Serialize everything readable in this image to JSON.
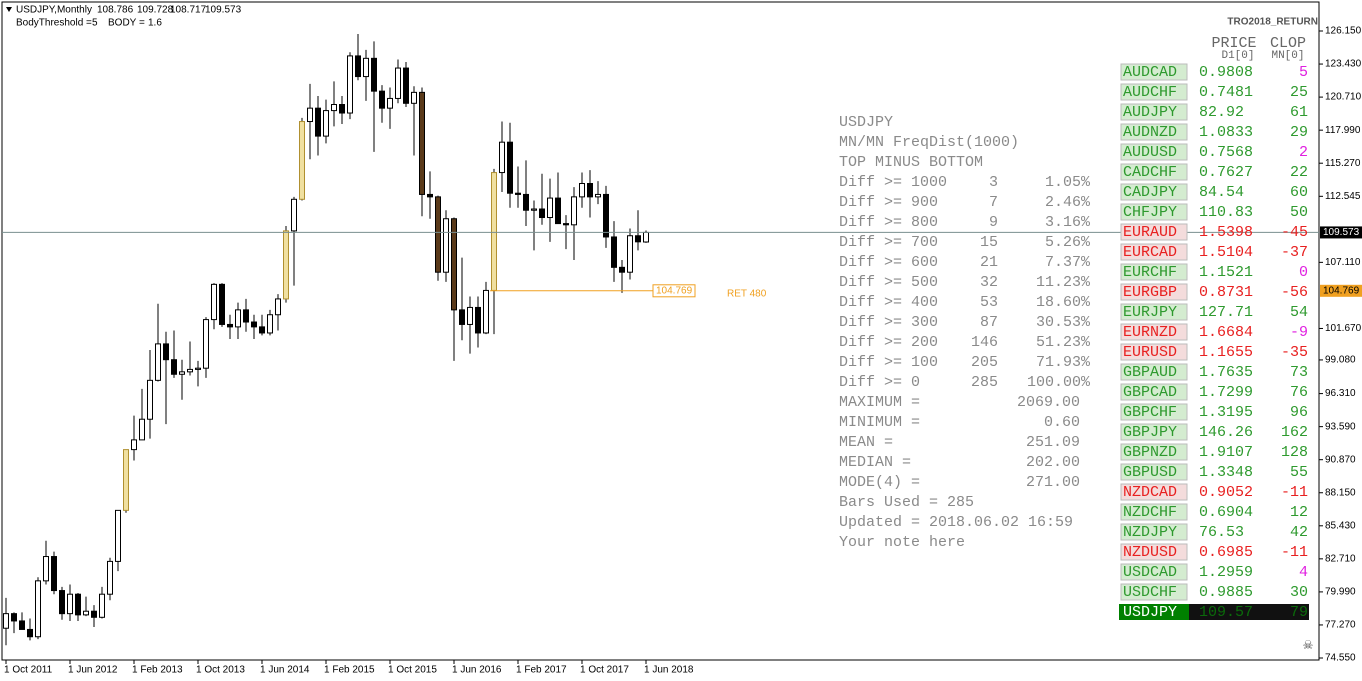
{
  "header": {
    "symbol": "USDJPY,Monthly",
    "threshold_label": "BodyThreshold =",
    "body_threshold": 5,
    "body_label": "BODY =",
    "body": 1.6
  },
  "chart_data": {
    "type": "candlestick",
    "open": [
      77.0,
      78.2,
      77.6,
      76.9,
      76.3,
      80.9,
      82.9,
      80.1,
      78.2,
      79.8,
      78.1,
      78.4,
      77.9,
      79.8,
      82.5,
      86.7,
      91.7,
      92.5,
      94.2,
      97.4,
      100.4,
      99.1,
      97.9,
      98.1,
      98.3,
      98.4,
      102.4,
      105.3,
      102.0,
      101.8,
      103.2,
      102.2,
      101.8,
      101.3,
      102.8,
      104.1,
      109.7,
      112.3,
      118.7,
      119.8,
      117.5,
      119.6,
      120.1,
      119.4,
      124.1,
      122.4,
      123.9,
      121.2,
      119.8,
      120.6,
      123.1,
      120.2,
      121.1,
      112.7,
      112.5,
      106.3,
      110.7,
      103.2,
      102.0,
      103.4,
      101.3,
      104.8,
      114.5,
      117.0,
      112.8,
      112.7,
      111.4,
      111.5,
      110.8,
      112.4,
      110.3,
      110.2,
      112.5,
      113.6,
      112.5,
      112.7,
      109.2,
      106.7,
      106.3,
      109.3,
      108.786
    ],
    "high": [
      79.5,
      78.3,
      78.3,
      77.8,
      81.2,
      84.2,
      83.3,
      80.4,
      80.6,
      79.9,
      79.6,
      78.9,
      80.4,
      82.8,
      86.6,
      91.3,
      94.5,
      96.7,
      99.9,
      103.7,
      101.4,
      101.5,
      99.1,
      100.6,
      99.0,
      102.6,
      105.4,
      105.4,
      102.8,
      103.8,
      104.1,
      102.8,
      102.8,
      103.2,
      104.5,
      110.1,
      112.5,
      119.0,
      121.8,
      120.8,
      120.5,
      122.0,
      120.8,
      124.4,
      125.9,
      124.6,
      125.3,
      121.7,
      121.5,
      123.8,
      123.6,
      121.6,
      121.5,
      114.6,
      112.6,
      111.4,
      110.8,
      107.5,
      104.3,
      104.3,
      105.5,
      114.8,
      118.7,
      118.6,
      115.0,
      115.5,
      112.2,
      114.4,
      114.0,
      114.5,
      111.0,
      113.3,
      114.5,
      114.7,
      113.8,
      113.4,
      110.5,
      107.3,
      109.9,
      111.4,
      109.728
    ],
    "low": [
      75.6,
      76.6,
      76.9,
      76.0,
      76.1,
      80.6,
      79.8,
      77.7,
      77.6,
      77.6,
      78.0,
      77.1,
      77.8,
      79.3,
      81.7,
      86.5,
      90.8,
      92.5,
      92.6,
      97.3,
      93.8,
      97.6,
      95.8,
      97.8,
      96.9,
      97.6,
      101.6,
      101.8,
      100.8,
      100.8,
      101.4,
      100.8,
      101.1,
      101.1,
      101.5,
      103.8,
      105.2,
      112.2,
      115.6,
      115.9,
      116.9,
      118.3,
      118.5,
      118.9,
      122.1,
      120.4,
      116.2,
      118.6,
      118.1,
      120.2,
      119.9,
      115.9,
      110.9,
      110.7,
      105.6,
      105.5,
      99.0,
      100.7,
      99.6,
      100.1,
      101.2,
      101.2,
      112.9,
      111.6,
      111.6,
      110.1,
      108.1,
      110.2,
      108.8,
      110.6,
      108.2,
      107.3,
      111.6,
      110.8,
      111.9,
      108.3,
      105.5,
      104.6,
      105.7,
      108.1,
      108.717
    ],
    "close": [
      78.2,
      77.6,
      76.9,
      76.3,
      80.9,
      82.9,
      80.1,
      78.2,
      79.8,
      78.1,
      78.4,
      77.9,
      79.8,
      82.5,
      86.7,
      91.7,
      92.5,
      94.2,
      97.4,
      100.4,
      99.1,
      97.9,
      98.1,
      98.3,
      98.4,
      102.4,
      105.3,
      102.0,
      101.8,
      103.2,
      102.2,
      101.8,
      101.3,
      102.8,
      104.1,
      109.7,
      112.3,
      118.7,
      119.8,
      117.5,
      119.6,
      120.1,
      119.4,
      124.1,
      122.4,
      123.9,
      121.2,
      119.8,
      120.6,
      123.1,
      120.2,
      121.1,
      112.7,
      112.5,
      106.3,
      110.7,
      103.2,
      102.0,
      103.4,
      101.3,
      104.8,
      114.5,
      117.0,
      112.8,
      112.7,
      111.4,
      111.5,
      110.8,
      112.4,
      110.3,
      110.2,
      112.5,
      113.6,
      112.5,
      112.7,
      109.2,
      106.7,
      106.3,
      109.3,
      108.8,
      109.573
    ],
    "ylim": [
      74.55,
      126.15
    ],
    "yticks": [
      {
        "value": 126.15,
        "label": "126.150"
      },
      {
        "value": 123.43,
        "label": "123.430"
      },
      {
        "value": 120.71,
        "label": "120.710"
      },
      {
        "value": 117.99,
        "label": "117.990"
      },
      {
        "value": 115.27,
        "label": "115.270"
      },
      {
        "value": 112.545,
        "label": "112.545"
      },
      {
        "value": 107.11,
        "label": "107.110"
      },
      {
        "value": 101.67,
        "label": "101.670"
      },
      {
        "value": 99.08,
        "label": "99.080"
      },
      {
        "value": 96.31,
        "label": "96.310"
      },
      {
        "value": 93.59,
        "label": "93.590"
      },
      {
        "value": 90.87,
        "label": "90.870"
      },
      {
        "value": 88.15,
        "label": "88.150"
      },
      {
        "value": 85.43,
        "label": "85.430"
      },
      {
        "value": 82.71,
        "label": "82.710"
      },
      {
        "value": 79.99,
        "label": "79.990"
      },
      {
        "value": 77.27,
        "label": "77.270"
      },
      {
        "value": 74.55,
        "label": "74.550"
      }
    ],
    "xticks": [
      {
        "value": 0,
        "label": "1 Oct 2011"
      },
      {
        "value": 8,
        "label": "1 Jun 2012"
      },
      {
        "value": 16,
        "label": "1 Feb 2013"
      },
      {
        "value": 24,
        "label": "1 Oct 2013"
      },
      {
        "value": 32,
        "label": "1 Jun 2014"
      },
      {
        "value": 40,
        "label": "1 Feb 2015"
      },
      {
        "value": 48,
        "label": "1 Oct 2015"
      },
      {
        "value": 56,
        "label": "1 Jun 2016"
      },
      {
        "value": 64,
        "label": "1 Feb 2017"
      },
      {
        "value": 72,
        "label": "1 Oct 2017"
      },
      {
        "value": 80,
        "label": "1 Jun 2018"
      }
    ],
    "ret_level": 104.769,
    "ret_label": "RET 480"
  },
  "stats": {
    "title": "USDJPY",
    "subtitle": "MN/MN FreqDist(1000)",
    "heading": "TOP MINUS BOTTOM",
    "rows": [
      {
        "label": "Diff >= 1000",
        "count": 3,
        "percent": "1.05%"
      },
      {
        "label": "Diff >= 900",
        "count": 7,
        "percent": "2.46%"
      },
      {
        "label": "Diff >= 800",
        "count": 9,
        "percent": "3.16%"
      },
      {
        "label": "Diff >= 700",
        "count": 15,
        "percent": "5.26%"
      },
      {
        "label": "Diff >= 600",
        "count": 21,
        "percent": "7.37%"
      },
      {
        "label": "Diff >= 500",
        "count": 32,
        "percent": "11.23%"
      },
      {
        "label": "Diff >= 400",
        "count": 53,
        "percent": "18.60%"
      },
      {
        "label": "Diff >= 300",
        "count": 87,
        "percent": "30.53%"
      },
      {
        "label": "Diff >= 200",
        "count": 146,
        "percent": "51.23%"
      },
      {
        "label": "Diff >= 100",
        "count": 205,
        "percent": "71.93%"
      },
      {
        "label": "Diff >= 0",
        "count": 285,
        "percent": "100.00%"
      }
    ],
    "summary": [
      {
        "label": "MAXIMUM =",
        "value": "2069.00"
      },
      {
        "label": "MINIMUM =",
        "value": "0.60"
      },
      {
        "label": "MEAN =",
        "value": "251.09"
      },
      {
        "label": "MEDIAN =",
        "value": "202.00"
      },
      {
        "label": "MODE(4) =",
        "value": "271.00"
      }
    ],
    "bars_used": "Bars Used = 285",
    "updated": "Updated = 2018.06.02 16:59",
    "note": "Your note here"
  },
  "watchlist": {
    "title": "TRO2018_RETURN",
    "price_header": "PRICE",
    "price_sub": "D1[0]",
    "clop_header": "CLOP",
    "clop_sub": "MN[0]",
    "rows": [
      {
        "symbol": "AUDCAD",
        "price": "0.9808",
        "clop": 5
      },
      {
        "symbol": "AUDCHF",
        "price": "0.7481",
        "clop": 25
      },
      {
        "symbol": "AUDJPY",
        "price": "82.92",
        "clop": 61
      },
      {
        "symbol": "AUDNZD",
        "price": "1.0833",
        "clop": 29
      },
      {
        "symbol": "AUDUSD",
        "price": "0.7568",
        "clop": 2
      },
      {
        "symbol": "CADCHF",
        "price": "0.7627",
        "clop": 22
      },
      {
        "symbol": "CADJPY",
        "price": "84.54",
        "clop": 60
      },
      {
        "symbol": "CHFJPY",
        "price": "110.83",
        "clop": 50
      },
      {
        "symbol": "EURAUD",
        "price": "1.5398",
        "clop": -45
      },
      {
        "symbol": "EURCAD",
        "price": "1.5104",
        "clop": -37
      },
      {
        "symbol": "EURCHF",
        "price": "1.1521",
        "clop": 0
      },
      {
        "symbol": "EURGBP",
        "price": "0.8731",
        "clop": -56
      },
      {
        "symbol": "EURJPY",
        "price": "127.71",
        "clop": 54
      },
      {
        "symbol": "EURNZD",
        "price": "1.6684",
        "clop": -9
      },
      {
        "symbol": "EURUSD",
        "price": "1.1655",
        "clop": -35
      },
      {
        "symbol": "GBPAUD",
        "price": "1.7635",
        "clop": 73
      },
      {
        "symbol": "GBPCAD",
        "price": "1.7299",
        "clop": 76
      },
      {
        "symbol": "GBPCHF",
        "price": "1.3195",
        "clop": 96
      },
      {
        "symbol": "GBPJPY",
        "price": "146.26",
        "clop": 162
      },
      {
        "symbol": "GBPNZD",
        "price": "1.9107",
        "clop": 128
      },
      {
        "symbol": "GBPUSD",
        "price": "1.3348",
        "clop": 55
      },
      {
        "symbol": "NZDCAD",
        "price": "0.9052",
        "clop": -11
      },
      {
        "symbol": "NZDCHF",
        "price": "0.6904",
        "clop": 12
      },
      {
        "symbol": "NZDJPY",
        "price": "76.53",
        "clop": 42
      },
      {
        "symbol": "NZDUSD",
        "price": "0.6985",
        "clop": -11
      },
      {
        "symbol": "USDCAD",
        "price": "1.2959",
        "clop": 4
      },
      {
        "symbol": "USDCHF",
        "price": "0.9885",
        "clop": 30
      },
      {
        "symbol": "USDJPY",
        "price": "109.57",
        "clop": 79,
        "selected": true
      }
    ]
  }
}
